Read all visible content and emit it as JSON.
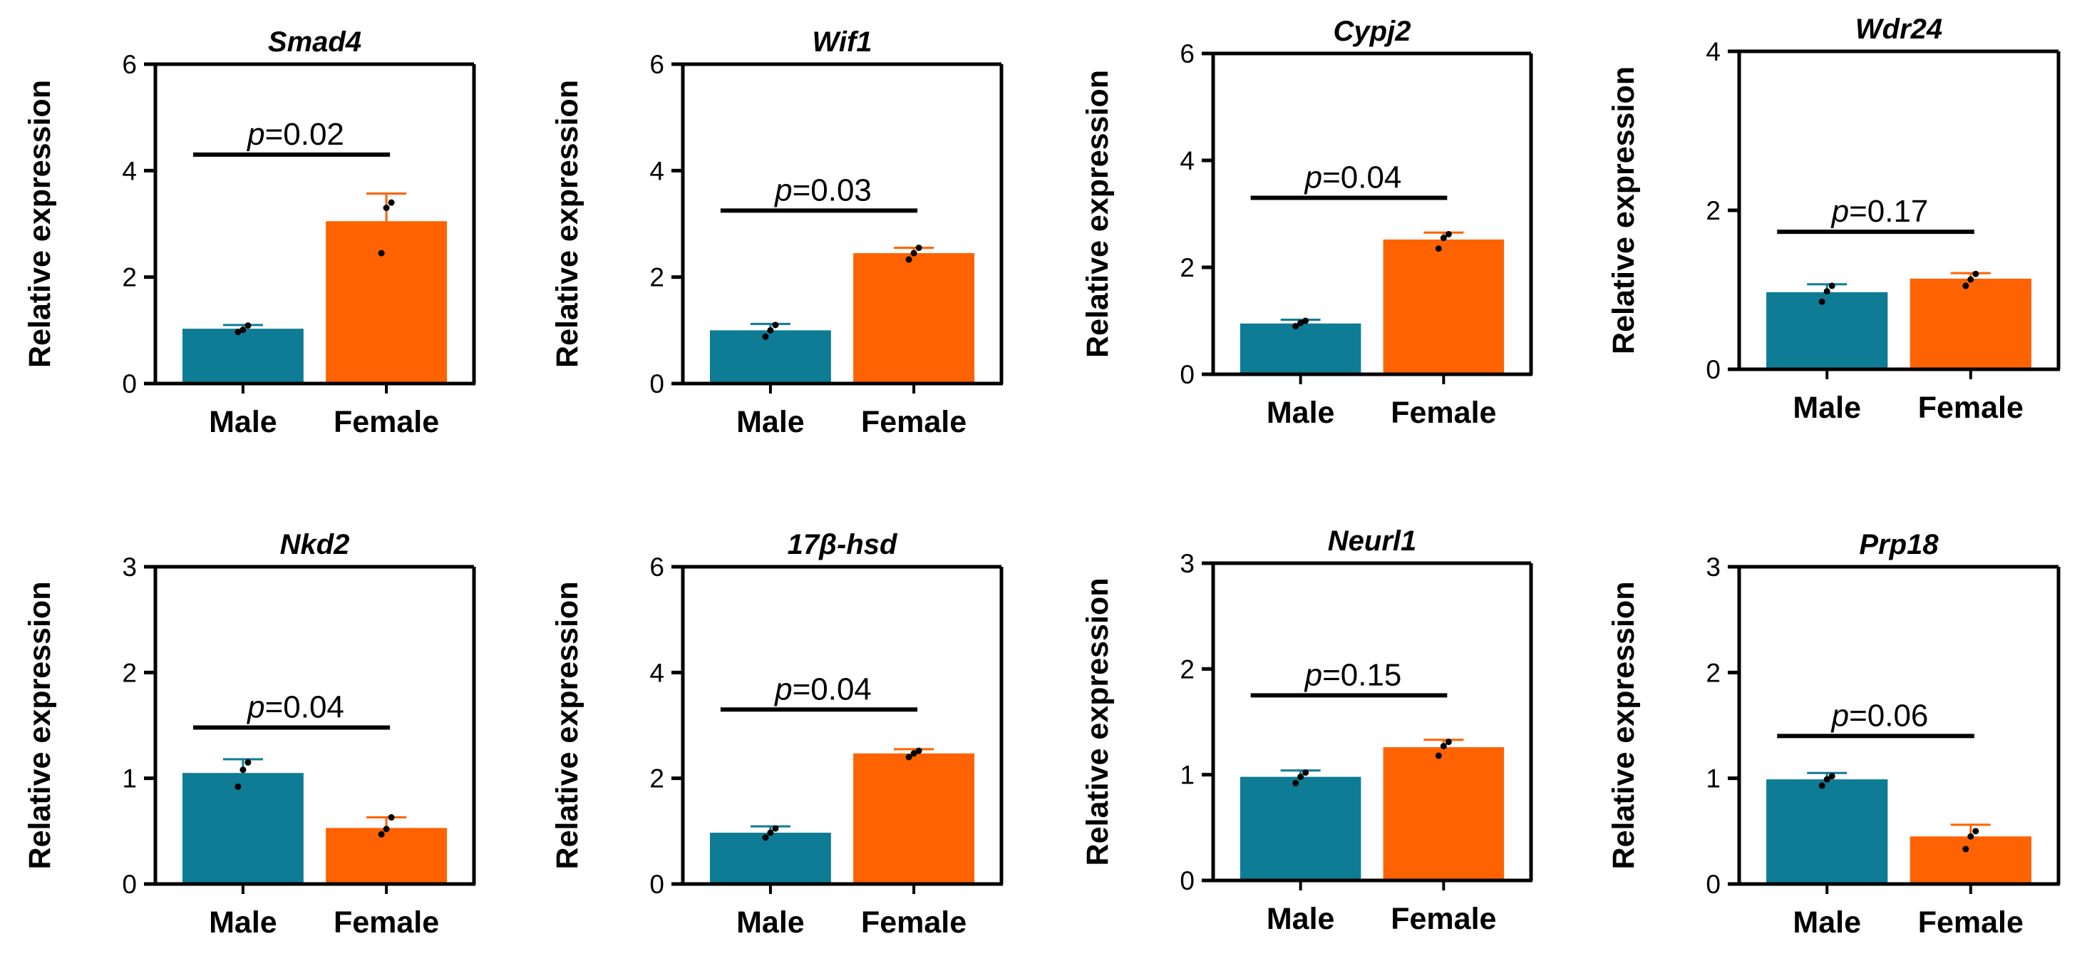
{
  "colors": {
    "male": "#0d7c94",
    "female": "#ff6200",
    "axis": "#000000"
  },
  "chart_data": [
    {
      "type": "bar",
      "title": "Smad4",
      "ylabel": "Relative expression",
      "ylim": [
        0,
        6
      ],
      "yticks": [
        "0",
        "2",
        "4",
        "6"
      ],
      "categories": [
        "Male",
        "Female"
      ],
      "values": [
        1.03,
        3.05
      ],
      "errors": [
        0.07,
        0.52
      ],
      "points": [
        [
          0.97,
          1.01,
          1.09
        ],
        [
          2.45,
          3.3,
          3.4
        ]
      ],
      "p_prefix": "p",
      "p_value": "=0.02",
      "p_y": 4.3
    },
    {
      "type": "bar",
      "title": "Wif1",
      "ylabel": "Relative expression",
      "ylim": [
        0,
        6
      ],
      "yticks": [
        "0",
        "2",
        "4",
        "6"
      ],
      "categories": [
        "Male",
        "Female"
      ],
      "values": [
        1.0,
        2.45
      ],
      "errors": [
        0.12,
        0.1
      ],
      "points": [
        [
          0.88,
          1.0,
          1.1
        ],
        [
          2.33,
          2.45,
          2.55
        ]
      ],
      "p_prefix": "p",
      "p_value": "=0.03",
      "p_y": 3.25
    },
    {
      "type": "bar",
      "title": "Cypj2",
      "ylabel": "Relative expression",
      "ylim": [
        0,
        6
      ],
      "yticks": [
        "0",
        "2",
        "4",
        "6"
      ],
      "categories": [
        "Male",
        "Female"
      ],
      "values": [
        0.95,
        2.52
      ],
      "errors": [
        0.07,
        0.13
      ],
      "points": [
        [
          0.9,
          0.96,
          1.0
        ],
        [
          2.35,
          2.55,
          2.62
        ]
      ],
      "p_prefix": "p",
      "p_value": "=0.04",
      "p_y": 3.3
    },
    {
      "type": "bar",
      "title": "Wdr24",
      "ylabel": "Relative expression",
      "ylim": [
        0,
        4
      ],
      "yticks": [
        "0",
        "2",
        "4"
      ],
      "categories": [
        "Male",
        "Female"
      ],
      "values": [
        0.97,
        1.14
      ],
      "errors": [
        0.1,
        0.07
      ],
      "points": [
        [
          0.85,
          0.98,
          1.05
        ],
        [
          1.05,
          1.13,
          1.2
        ]
      ],
      "p_prefix": "p",
      "p_value": "=0.17",
      "p_y": 1.73
    },
    {
      "type": "bar",
      "title": "Nkd2",
      "ylabel": "Relative expression",
      "ylim": [
        0,
        3
      ],
      "yticks": [
        "0",
        "1",
        "2",
        "3"
      ],
      "categories": [
        "Male",
        "Female"
      ],
      "values": [
        1.05,
        0.53
      ],
      "errors": [
        0.13,
        0.1
      ],
      "points": [
        [
          0.92,
          1.08,
          1.15
        ],
        [
          0.47,
          0.52,
          0.63
        ]
      ],
      "p_prefix": "p",
      "p_value": "=0.04",
      "p_y": 1.48
    },
    {
      "type": "bar",
      "title": "17β-hsd",
      "ylabel": "Relative expression",
      "ylim": [
        0,
        6
      ],
      "yticks": [
        "0",
        "2",
        "4",
        "6"
      ],
      "categories": [
        "Male",
        "Female"
      ],
      "values": [
        0.97,
        2.47
      ],
      "errors": [
        0.12,
        0.08
      ],
      "points": [
        [
          0.88,
          0.97,
          1.05
        ],
        [
          2.4,
          2.47,
          2.52
        ]
      ],
      "p_prefix": "p",
      "p_value": "=0.04",
      "p_y": 3.3
    },
    {
      "type": "bar",
      "title": "Neurl1",
      "ylabel": "Relative expression",
      "ylim": [
        0,
        3
      ],
      "yticks": [
        "0",
        "1",
        "2",
        "3"
      ],
      "categories": [
        "Male",
        "Female"
      ],
      "values": [
        0.98,
        1.26
      ],
      "errors": [
        0.06,
        0.07
      ],
      "points": [
        [
          0.92,
          0.98,
          1.02
        ],
        [
          1.18,
          1.27,
          1.31
        ]
      ],
      "p_prefix": "p",
      "p_value": "=0.15",
      "p_y": 1.75
    },
    {
      "type": "bar",
      "title": "Prp18",
      "ylabel": "Relative expression",
      "ylim": [
        0,
        3
      ],
      "yticks": [
        "0",
        "1",
        "2",
        "3"
      ],
      "categories": [
        "Male",
        "Female"
      ],
      "values": [
        0.99,
        0.45
      ],
      "errors": [
        0.06,
        0.11
      ],
      "points": [
        [
          0.93,
          0.99,
          1.02
        ],
        [
          0.33,
          0.45,
          0.5
        ]
      ],
      "p_prefix": "p",
      "p_value": "=0.06",
      "p_y": 1.4
    }
  ]
}
